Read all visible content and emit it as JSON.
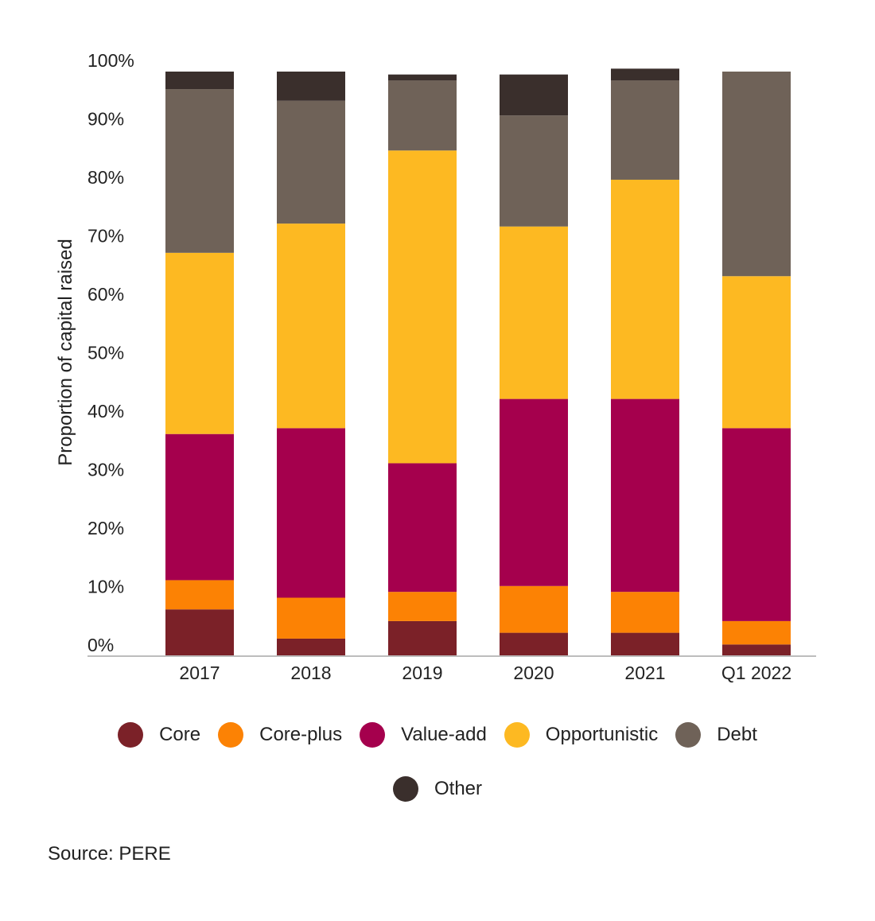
{
  "chart_data": {
    "type": "bar",
    "stacked": true,
    "categories": [
      "2017",
      "2018",
      "2019",
      "2020",
      "2021",
      "Q1 2022"
    ],
    "ylabel": "Proportion of capital raised",
    "xlabel": "",
    "ylim": [
      0,
      100
    ],
    "yticks": [
      "0%",
      "10%",
      "20%",
      "30%",
      "40%",
      "50%",
      "60%",
      "70%",
      "80%",
      "90%",
      "100%"
    ],
    "series": [
      {
        "name": "Core",
        "color": "#7b2128",
        "values": [
          8,
          3,
          6,
          4,
          4,
          2
        ]
      },
      {
        "name": "Core-plus",
        "color": "#fc8204",
        "values": [
          5,
          7,
          5,
          8,
          7,
          4
        ]
      },
      {
        "name": "Value-add",
        "color": "#a5004d",
        "values": [
          25,
          29,
          22,
          32,
          33,
          33
        ]
      },
      {
        "name": "Opportunistic",
        "color": "#fdb922",
        "values": [
          31,
          35,
          53.5,
          29.5,
          37.5,
          26
        ]
      },
      {
        "name": "Debt",
        "color": "#6f6258",
        "values": [
          28,
          21,
          12,
          19,
          17,
          35
        ]
      },
      {
        "name": "Other",
        "color": "#3a2f2c",
        "values": [
          3,
          5,
          1,
          7,
          2,
          0
        ]
      }
    ],
    "grid": false,
    "legend_position": "bottom"
  },
  "source": "Source: PERE"
}
